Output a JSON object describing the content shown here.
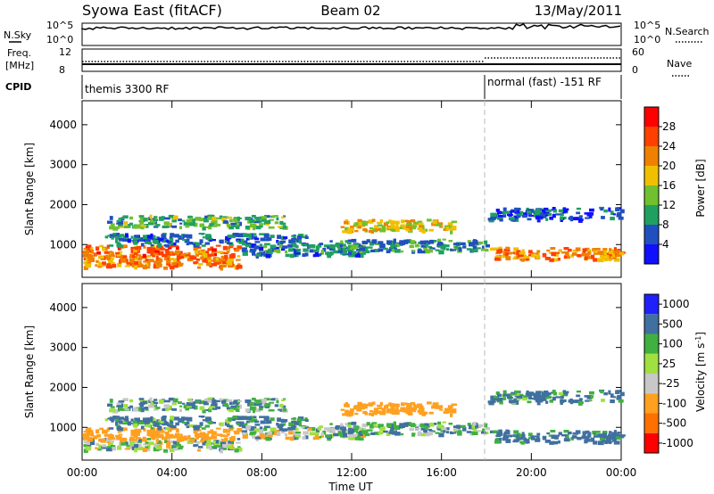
{
  "header": {
    "station": "Syowa East (fitACF)",
    "beam": "Beam 02",
    "date": "13/May/2011"
  },
  "status_panels": {
    "nsky_label": "N.Sky",
    "nsky_ticks": [
      "10^5",
      "10^0"
    ],
    "nsearch_label": "N.Search",
    "nsearch_ticks": [
      "10^5",
      "10^0"
    ],
    "freq_label_1": "Freq.",
    "freq_label_2": "[MHz]",
    "freq_ticks": [
      "12",
      "8"
    ],
    "nave_label": "Nave",
    "nave_ticks": [
      "60",
      "0"
    ],
    "cpid_label": "CPID",
    "cpid_segments": [
      {
        "start": "00:00",
        "label": "themis 3300 RF"
      },
      {
        "start": "18:00",
        "label": "normal (fast) -151 RF"
      }
    ]
  },
  "colors": {
    "power": [
      "#1010ff",
      "#2050c0",
      "#20a060",
      "#70c030",
      "#f0c000",
      "#f08000",
      "#ff4000",
      "#ff0000"
    ],
    "velocity": [
      "#ff0000",
      "#ff7000",
      "#ffa020",
      "#c8c8c8",
      "#a0e040",
      "#40b040",
      "#4070a0",
      "#2020ff"
    ]
  },
  "chart_data": [
    {
      "type": "heatmap",
      "name": "power",
      "title": "",
      "xlabel": "",
      "ylabel": "Slant Range [km]",
      "xlim": [
        "00:00",
        "24:00"
      ],
      "ylim": [
        180,
        4600
      ],
      "yticks": [
        "1000",
        "2000",
        "3000",
        "4000"
      ],
      "colorbar_label": "Power [dB]",
      "colorbar_ticks": [
        "4",
        "8",
        "12",
        "16",
        "20",
        "24",
        "28"
      ]
    },
    {
      "type": "heatmap",
      "name": "velocity",
      "title": "",
      "xlabel": "Time UT",
      "ylabel": "Slant Range [km]",
      "xlim": [
        "00:00",
        "24:00"
      ],
      "ylim": [
        180,
        4600
      ],
      "xticks": [
        "00:00",
        "04:00",
        "08:00",
        "12:00",
        "16:00",
        "20:00",
        "00:00"
      ],
      "yticks": [
        "1000",
        "2000",
        "3000",
        "4000"
      ],
      "colorbar_label": "Velocity [m s^-1]",
      "colorbar_ticks": [
        "-1000",
        "-500",
        "-100",
        "-25",
        "25",
        "100",
        "500",
        "1000"
      ],
      "echo_bands": [
        {
          "start_h": 0.0,
          "end_h": 7.0,
          "range_km": 600,
          "power": 24,
          "velocity": 30
        },
        {
          "start_h": 0.0,
          "end_h": 7.0,
          "range_km": 850,
          "power": 26,
          "velocity": -250
        },
        {
          "start_h": 1.0,
          "end_h": 10.0,
          "range_km": 1150,
          "power": 9,
          "velocity": 150
        },
        {
          "start_h": 1.0,
          "end_h": 9.0,
          "range_km": 1600,
          "power": 14,
          "velocity": 60
        },
        {
          "start_h": 7.0,
          "end_h": 12.5,
          "range_km": 900,
          "power": 10,
          "velocity": 5
        },
        {
          "start_h": 11.5,
          "end_h": 16.5,
          "range_km": 1500,
          "power": 20,
          "velocity": -300
        },
        {
          "start_h": 11.0,
          "end_h": 18.0,
          "range_km": 1000,
          "power": 12,
          "velocity": 80
        },
        {
          "start_h": 18.0,
          "end_h": 24.0,
          "range_km": 800,
          "power": 24,
          "velocity": 200
        },
        {
          "start_h": 18.0,
          "end_h": 24.0,
          "range_km": 1800,
          "power": 8,
          "velocity": 150
        }
      ]
    }
  ]
}
